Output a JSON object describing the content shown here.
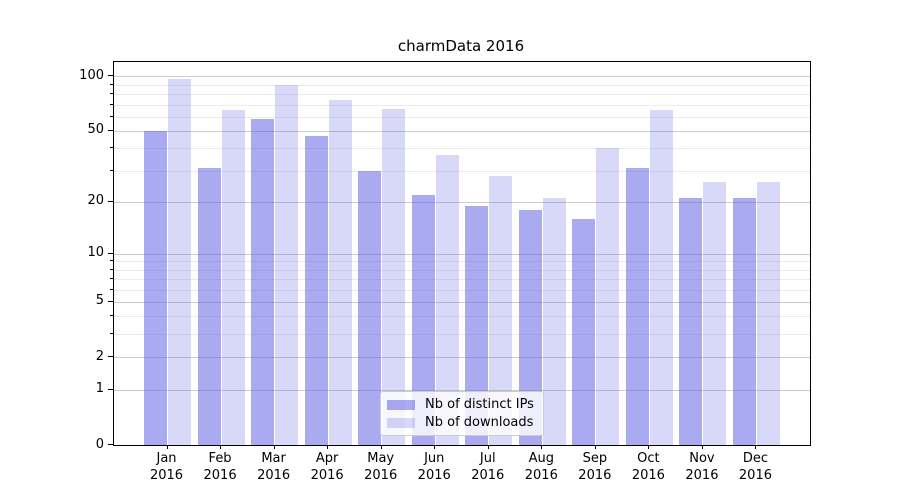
{
  "title": "charmData 2016",
  "chart_data": {
    "type": "bar",
    "title": "charmData 2016",
    "xlabel": "",
    "ylabel": "",
    "categories": [
      "Jan",
      "Feb",
      "Mar",
      "Apr",
      "May",
      "Jun",
      "Jul",
      "Aug",
      "Sep",
      "Oct",
      "Nov",
      "Dec"
    ],
    "x_year_line": "2016",
    "series": [
      {
        "name": "Nb of distinct IPs",
        "color": "rgba(100,100,228,0.55)",
        "values": [
          50,
          31,
          58,
          47,
          30,
          22,
          19,
          18,
          16,
          31,
          21,
          21
        ]
      },
      {
        "name": "Nb of downloads",
        "color": "rgba(100,100,228,0.25)",
        "values": [
          97,
          65,
          90,
          74,
          66,
          37,
          28,
          21,
          40,
          65,
          26,
          26
        ]
      }
    ],
    "yscale": "log1p",
    "ylim": [
      0,
      120
    ],
    "yticks": [
      100,
      50,
      20,
      10,
      5,
      2,
      1,
      0
    ],
    "minor_yticks": [
      90,
      80,
      70,
      60,
      40,
      30,
      9,
      8,
      7,
      6,
      4,
      3
    ],
    "grid": true,
    "legend_position": "lower center",
    "colors": {
      "major_grid": "#cccccc",
      "minor_grid": "#ebebeb",
      "axis": "#000000",
      "background": "#ffffff"
    }
  }
}
